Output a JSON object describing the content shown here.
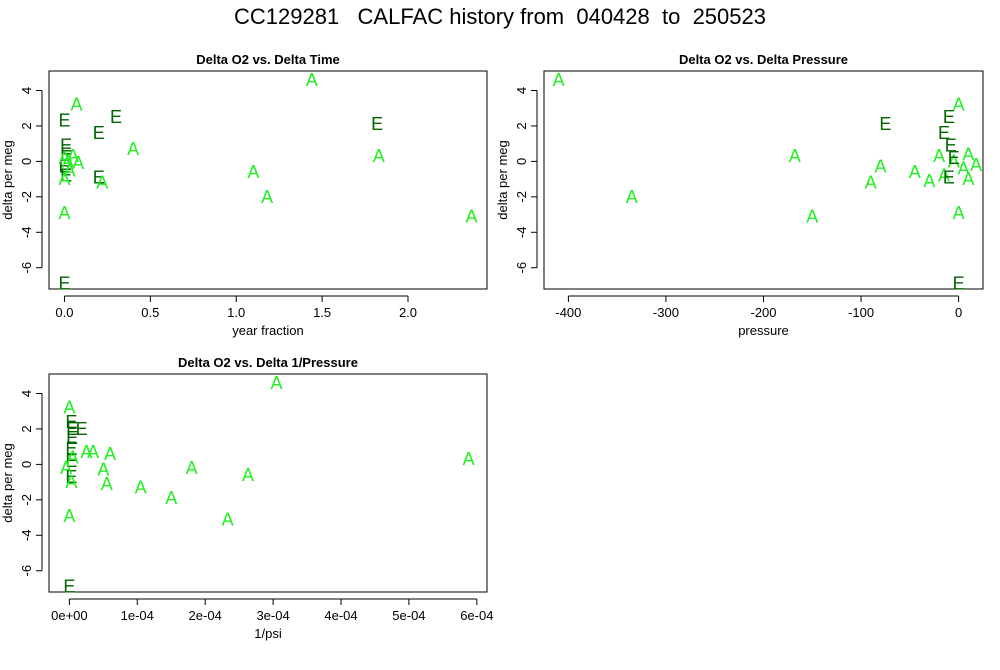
{
  "page": {
    "title": "CC129281   CALFAC history from  040428  to  250523"
  },
  "colors": {
    "A": "#22ee22",
    "E": "#006400",
    "axis": "#000000"
  },
  "chart_data": [
    {
      "type": "scatter",
      "title": "Delta O2 vs. Delta Time",
      "xlabel": "year fraction",
      "ylabel": "delta per meg",
      "xlim": [
        -0.09,
        2.46
      ],
      "ylim": [
        -7.2,
        5.1
      ],
      "xticks": [
        0.0,
        0.5,
        1.0,
        1.5,
        2.0
      ],
      "xtick_labels": [
        "0.0",
        "0.5",
        "1.0",
        "1.5",
        "2.0"
      ],
      "yticks": [
        -6,
        -4,
        -2,
        0,
        2,
        4
      ],
      "ytick_labels": [
        "-6",
        "-4",
        "-2",
        "0",
        "2",
        "4"
      ],
      "points": [
        {
          "x": 0.0,
          "y": -6.9,
          "label": "E"
        },
        {
          "x": 0.0,
          "y": 2.3,
          "label": "E"
        },
        {
          "x": 0.01,
          "y": 0.9,
          "label": "E"
        },
        {
          "x": 0.01,
          "y": 0.4,
          "label": "E"
        },
        {
          "x": 0.0,
          "y": -0.3,
          "label": "E"
        },
        {
          "x": 0.01,
          "y": -0.8,
          "label": "E"
        },
        {
          "x": 0.2,
          "y": 1.6,
          "label": "E"
        },
        {
          "x": 0.2,
          "y": -0.9,
          "label": "E"
        },
        {
          "x": 0.3,
          "y": 2.5,
          "label": "E"
        },
        {
          "x": 1.82,
          "y": 2.1,
          "label": "E"
        },
        {
          "x": 0.0,
          "y": -2.9,
          "label": "A"
        },
        {
          "x": 0.07,
          "y": 3.2,
          "label": "A"
        },
        {
          "x": 0.0,
          "y": 0.2,
          "label": "A"
        },
        {
          "x": 0.02,
          "y": 0.0,
          "label": "A"
        },
        {
          "x": 0.05,
          "y": 0.3,
          "label": "A"
        },
        {
          "x": 0.08,
          "y": -0.1,
          "label": "A"
        },
        {
          "x": 0.0,
          "y": -1.0,
          "label": "A"
        },
        {
          "x": 0.03,
          "y": -0.5,
          "label": "A"
        },
        {
          "x": 0.22,
          "y": -1.2,
          "label": "A"
        },
        {
          "x": 0.4,
          "y": 0.7,
          "label": "A"
        },
        {
          "x": 1.1,
          "y": -0.6,
          "label": "A"
        },
        {
          "x": 1.18,
          "y": -2.0,
          "label": "A"
        },
        {
          "x": 1.44,
          "y": 4.6,
          "label": "A"
        },
        {
          "x": 1.83,
          "y": 0.3,
          "label": "A"
        },
        {
          "x": 2.37,
          "y": -3.1,
          "label": "A"
        }
      ]
    },
    {
      "type": "scatter",
      "title": "Delta O2 vs. Delta Pressure",
      "xlabel": "pressure",
      "ylabel": "delta per meg",
      "xlim": [
        -425,
        25
      ],
      "ylim": [
        -7.2,
        5.1
      ],
      "xticks": [
        -400,
        -300,
        -200,
        -100,
        0
      ],
      "xtick_labels": [
        "-400",
        "-300",
        "-200",
        "-100",
        "0"
      ],
      "yticks": [
        -6,
        -4,
        -2,
        0,
        2,
        4
      ],
      "ytick_labels": [
        "-6",
        "-4",
        "-2",
        "0",
        "2",
        "4"
      ],
      "points": [
        {
          "x": -410,
          "y": 4.6,
          "label": "A"
        },
        {
          "x": -335,
          "y": -2.0,
          "label": "A"
        },
        {
          "x": -168,
          "y": 0.3,
          "label": "A"
        },
        {
          "x": -150,
          "y": -3.1,
          "label": "A"
        },
        {
          "x": -90,
          "y": -1.2,
          "label": "A"
        },
        {
          "x": -80,
          "y": -0.3,
          "label": "A"
        },
        {
          "x": -45,
          "y": -0.6,
          "label": "A"
        },
        {
          "x": -30,
          "y": -1.1,
          "label": "A"
        },
        {
          "x": -15,
          "y": -0.8,
          "label": "A"
        },
        {
          "x": -20,
          "y": 0.3,
          "label": "A"
        },
        {
          "x": 0,
          "y": 3.2,
          "label": "A"
        },
        {
          "x": 0,
          "y": -2.9,
          "label": "A"
        },
        {
          "x": -5,
          "y": 0.0,
          "label": "A"
        },
        {
          "x": 5,
          "y": -0.4,
          "label": "A"
        },
        {
          "x": 10,
          "y": 0.4,
          "label": "A"
        },
        {
          "x": 10,
          "y": -1.0,
          "label": "A"
        },
        {
          "x": 18,
          "y": -0.2,
          "label": "A"
        },
        {
          "x": -75,
          "y": 2.1,
          "label": "E"
        },
        {
          "x": -10,
          "y": 2.5,
          "label": "E"
        },
        {
          "x": -15,
          "y": 1.6,
          "label": "E"
        },
        {
          "x": -8,
          "y": 0.9,
          "label": "E"
        },
        {
          "x": -5,
          "y": 0.2,
          "label": "E"
        },
        {
          "x": -10,
          "y": -0.9,
          "label": "E"
        },
        {
          "x": 0,
          "y": -6.9,
          "label": "E"
        }
      ]
    },
    {
      "type": "scatter",
      "title": "Delta O2 vs. Delta 1/Pressure",
      "xlabel": "1/psi",
      "ylabel": "delta per meg",
      "xlim": [
        -3e-05,
        0.000615
      ],
      "ylim": [
        -7.2,
        5.1
      ],
      "xticks": [
        0,
        0.0001,
        0.0002,
        0.0003,
        0.0004,
        0.0005,
        0.0006
      ],
      "xtick_labels": [
        "0e+00",
        "1e-04",
        "2e-04",
        "3e-04",
        "4e-04",
        "5e-04",
        "6e-04"
      ],
      "yticks": [
        -6,
        -4,
        -2,
        0,
        2,
        4
      ],
      "ytick_labels": [
        "-6",
        "-4",
        "-2",
        "0",
        "2",
        "4"
      ],
      "points": [
        {
          "x": 0.0,
          "y": -6.9,
          "label": "E"
        },
        {
          "x": 3e-06,
          "y": 2.4,
          "label": "E"
        },
        {
          "x": 4e-06,
          "y": 2.0,
          "label": "E"
        },
        {
          "x": 4e-06,
          "y": 1.5,
          "label": "E"
        },
        {
          "x": 3e-06,
          "y": 0.9,
          "label": "E"
        },
        {
          "x": 3e-06,
          "y": 0.2,
          "label": "E"
        },
        {
          "x": 3e-06,
          "y": -0.7,
          "label": "E"
        },
        {
          "x": 1.8e-05,
          "y": 2.0,
          "label": "E"
        },
        {
          "x": 0.0,
          "y": 3.2,
          "label": "A"
        },
        {
          "x": 0.0,
          "y": -2.9,
          "label": "A"
        },
        {
          "x": -5e-06,
          "y": -0.2,
          "label": "A"
        },
        {
          "x": 5e-06,
          "y": 0.4,
          "label": "A"
        },
        {
          "x": 3e-06,
          "y": -1.0,
          "label": "A"
        },
        {
          "x": 2.5e-05,
          "y": 0.7,
          "label": "A"
        },
        {
          "x": 3.5e-05,
          "y": 0.7,
          "label": "A"
        },
        {
          "x": 5e-05,
          "y": -0.3,
          "label": "A"
        },
        {
          "x": 5.5e-05,
          "y": -1.1,
          "label": "A"
        },
        {
          "x": 6e-05,
          "y": 0.6,
          "label": "A"
        },
        {
          "x": 0.000105,
          "y": -1.3,
          "label": "A"
        },
        {
          "x": 0.00015,
          "y": -1.9,
          "label": "A"
        },
        {
          "x": 0.00018,
          "y": -0.2,
          "label": "A"
        },
        {
          "x": 0.000233,
          "y": -3.1,
          "label": "A"
        },
        {
          "x": 0.000263,
          "y": -0.6,
          "label": "A"
        },
        {
          "x": 0.000305,
          "y": 4.6,
          "label": "A"
        },
        {
          "x": 0.000588,
          "y": 0.3,
          "label": "A"
        }
      ]
    }
  ]
}
